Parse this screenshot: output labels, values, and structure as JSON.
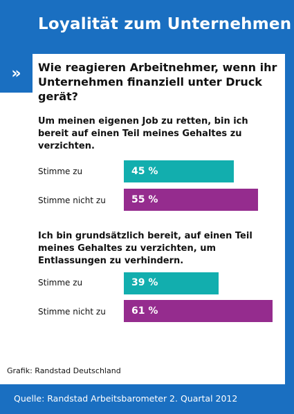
{
  "header": {
    "title": "Loyalität zum Unternehmen"
  },
  "question": "Wie reagieren Arbeitnehmer, wenn ihr Unternehmen finanziell unter Druck gerät?",
  "colors": {
    "agree": "#12aeae",
    "disagree": "#952c8e",
    "brand": "#1a6fc1"
  },
  "chart_data": [
    {
      "type": "bar",
      "orientation": "horizontal",
      "title": "Um meinen eigenen Job zu retten, bin ich bereit auf einen Teil meines Gehaltes zu verzichten.",
      "categories": [
        "Stimme zu",
        "Stimme nicht zu"
      ],
      "values": [
        45,
        55
      ],
      "value_labels": [
        "45 %",
        "55 %"
      ],
      "unit": "%"
    },
    {
      "type": "bar",
      "orientation": "horizontal",
      "title": "Ich bin grundsätzlich bereit, auf einen Teil meines Gehaltes zu verzichten, um Entlassungen zu verhindern.",
      "categories": [
        "Stimme zu",
        "Stimme nicht zu"
      ],
      "values": [
        39,
        61
      ],
      "value_labels": [
        "39 %",
        "61 %"
      ],
      "unit": "%"
    }
  ],
  "credit": "Grafik: Randstad Deutschland",
  "footer": {
    "source": "Quelle: Randstad Arbeitsbarometer 2. Quartal 2012"
  }
}
